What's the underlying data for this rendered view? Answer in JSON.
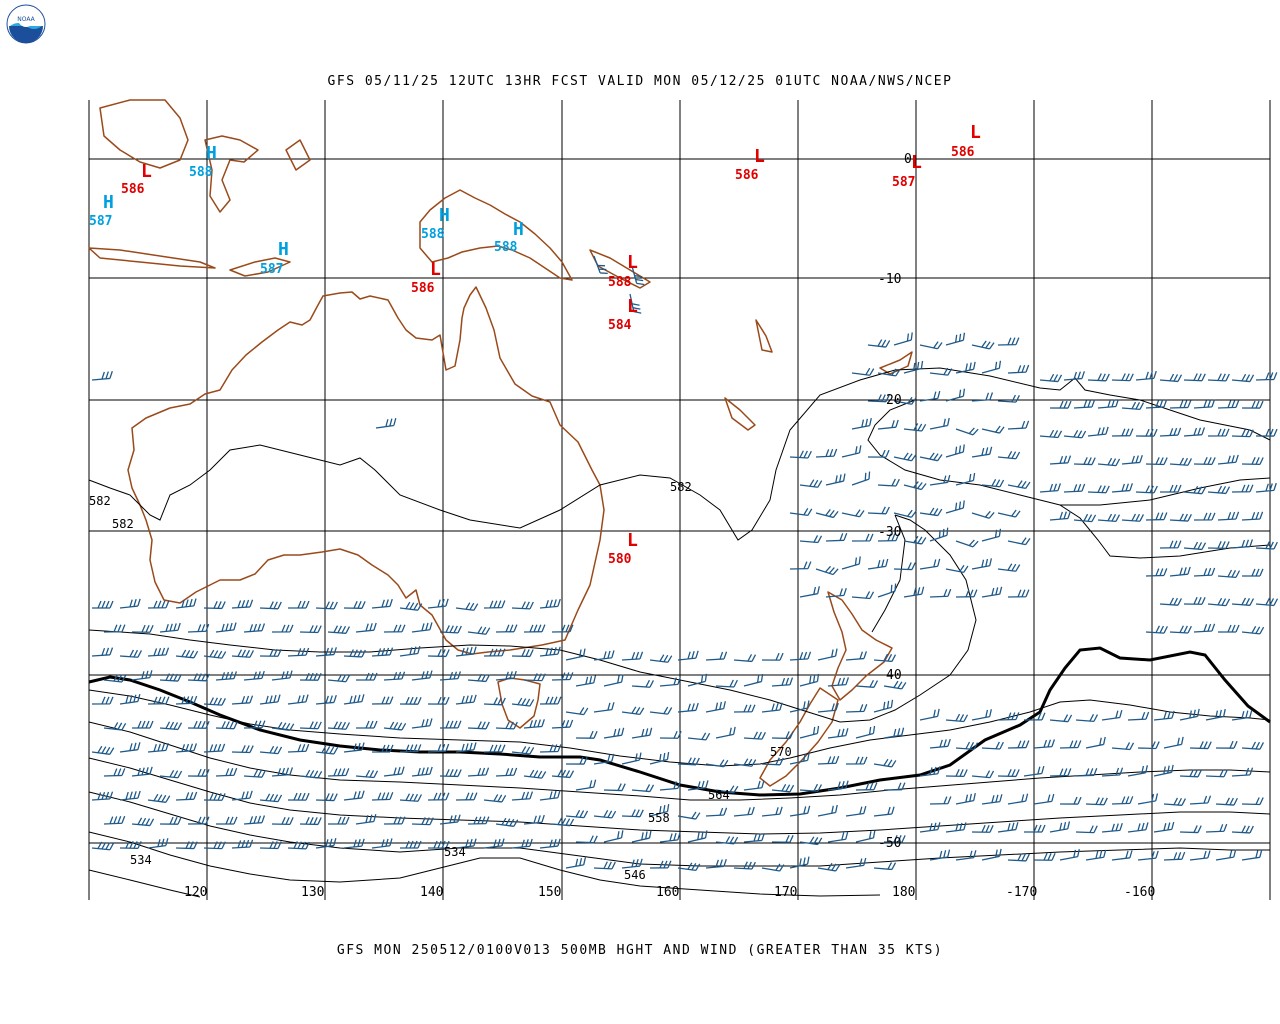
{
  "header": {
    "title": "GFS 05/11/25 12UTC 13HR FCST VALID MON 05/12/25 01UTC NOAA/NWS/NCEP"
  },
  "footer": {
    "caption": "GFS MON 250512/0100V013 500MB HGHT AND WIND (GREATER THAN 35 KTS)"
  },
  "logo": {
    "text": "NOAA"
  },
  "longitude_labels": [
    "120",
    "130",
    "140",
    "150",
    "160",
    "170",
    "180",
    "-170",
    "-160"
  ],
  "latitude_labels": [
    "0",
    "-10",
    "20",
    "-30",
    "40",
    "-50"
  ],
  "contour_labels": [
    "582",
    "582",
    "582",
    "570",
    "564",
    "558",
    "534",
    "534",
    "546"
  ],
  "pressure_centers": [
    {
      "type": "L",
      "value": "586",
      "color": "#e00000"
    },
    {
      "type": "H",
      "value": "588",
      "color": "#00a0e0"
    },
    {
      "type": "H",
      "value": "587",
      "color": "#00a0e0"
    },
    {
      "type": "H",
      "value": "587",
      "color": "#00a0e0"
    },
    {
      "type": "H",
      "value": "588",
      "color": "#00a0e0"
    },
    {
      "type": "H",
      "value": "588",
      "color": "#00a0e0"
    },
    {
      "type": "L",
      "value": "586",
      "color": "#e00000"
    },
    {
      "type": "L",
      "value": "588",
      "color": "#e00000"
    },
    {
      "type": "L",
      "value": "584",
      "color": "#e00000"
    },
    {
      "type": "L",
      "value": "586",
      "color": "#e00000"
    },
    {
      "type": "L",
      "value": "587",
      "color": "#e00000"
    },
    {
      "type": "L",
      "value": "586",
      "color": "#e00000"
    },
    {
      "type": "L",
      "value": "580",
      "color": "#e00000"
    }
  ],
  "colors": {
    "coast": "#9a4a1a",
    "barb": "#1f5a8a",
    "grid": "#000000",
    "contour": "#000000",
    "high": "#00a0e0",
    "low": "#e00000"
  }
}
